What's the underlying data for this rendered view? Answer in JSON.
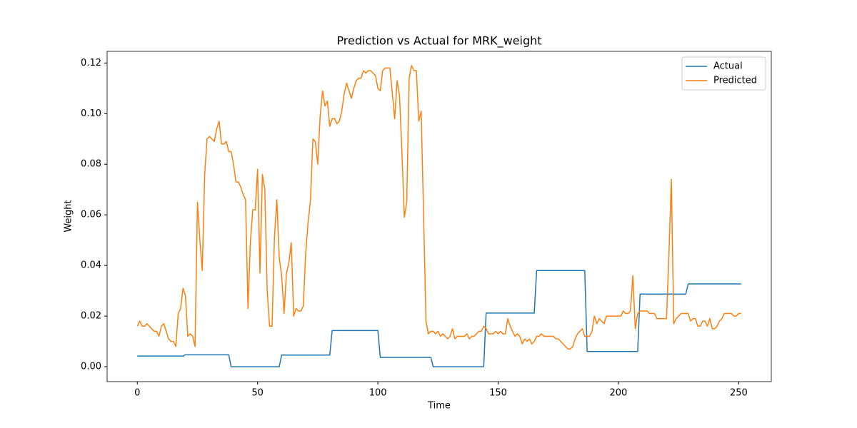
{
  "chart_data": {
    "type": "line",
    "title": "Prediction vs Actual for MRK_weight",
    "x_label": "Time",
    "y_label": "Weight",
    "x": [
      0,
      1,
      2,
      3,
      4,
      5,
      6,
      7,
      8,
      9,
      10,
      11,
      12,
      13,
      14,
      15,
      16,
      17,
      18,
      19,
      20,
      21,
      22,
      23,
      24,
      25,
      26,
      27,
      28,
      29,
      30,
      31,
      32,
      33,
      34,
      35,
      36,
      37,
      38,
      39,
      40,
      41,
      42,
      43,
      44,
      45,
      46,
      47,
      48,
      49,
      50,
      51,
      52,
      53,
      54,
      55,
      56,
      57,
      58,
      59,
      60,
      61,
      62,
      63,
      64,
      65,
      66,
      67,
      68,
      69,
      70,
      71,
      72,
      73,
      74,
      75,
      76,
      77,
      78,
      79,
      80,
      81,
      82,
      83,
      84,
      85,
      86,
      87,
      88,
      89,
      90,
      91,
      92,
      93,
      94,
      95,
      96,
      97,
      98,
      99,
      100,
      101,
      102,
      103,
      104,
      105,
      106,
      107,
      108,
      109,
      110,
      111,
      112,
      113,
      114,
      115,
      116,
      117,
      118,
      119,
      120,
      121,
      122,
      123,
      124,
      125,
      126,
      127,
      128,
      129,
      130,
      131,
      132,
      133,
      134,
      135,
      136,
      137,
      138,
      139,
      140,
      141,
      142,
      143,
      144,
      145,
      146,
      147,
      148,
      149,
      150,
      151,
      152,
      153,
      154,
      155,
      156,
      157,
      158,
      159,
      160,
      161,
      162,
      163,
      164,
      165,
      166,
      167,
      168,
      169,
      170,
      171,
      172,
      173,
      174,
      175,
      176,
      177,
      178,
      179,
      180,
      181,
      182,
      183,
      184,
      185,
      186,
      187,
      188,
      189,
      190,
      191,
      192,
      193,
      194,
      195,
      196,
      197,
      198,
      199,
      200,
      201,
      202,
      203,
      204,
      205,
      206,
      207,
      208,
      209,
      210,
      211,
      212,
      213,
      214,
      215,
      216,
      217,
      218,
      219,
      220,
      221,
      222,
      223,
      224,
      225,
      226,
      227,
      228,
      229,
      230,
      231,
      232,
      233,
      234,
      235,
      236,
      237,
      238,
      239,
      240,
      241,
      242,
      243,
      244,
      245,
      246,
      247,
      248,
      249,
      250,
      251
    ],
    "series": [
      {
        "name": "Actual",
        "color": "#1f77b4",
        "values": [
          0.0042,
          0.0042,
          0.0042,
          0.0042,
          0.0042,
          0.0042,
          0.0042,
          0.0042,
          0.0042,
          0.0042,
          0.0042,
          0.0042,
          0.0042,
          0.0042,
          0.0042,
          0.0042,
          0.0042,
          0.0042,
          0.0042,
          0.0042,
          0.0047,
          0.0047,
          0.0047,
          0.0047,
          0.0047,
          0.0047,
          0.0047,
          0.0047,
          0.0047,
          0.0047,
          0.0047,
          0.0047,
          0.0047,
          0.0047,
          0.0047,
          0.0047,
          0.0047,
          0.0047,
          0.0047,
          0,
          0,
          0,
          0,
          0,
          0,
          0,
          0,
          0,
          0,
          0,
          0,
          0,
          0,
          0,
          0,
          0,
          0,
          0,
          0,
          0,
          0.0046,
          0.0046,
          0.0046,
          0.0046,
          0.0046,
          0.0046,
          0.0046,
          0.0046,
          0.0046,
          0.0046,
          0.0046,
          0.0046,
          0.0046,
          0.0046,
          0.0046,
          0.0046,
          0.0046,
          0.0046,
          0.0046,
          0.0046,
          0.0046,
          0.0143,
          0.0143,
          0.0143,
          0.0143,
          0.0143,
          0.0143,
          0.0143,
          0.0143,
          0.0143,
          0.0143,
          0.0143,
          0.0143,
          0.0143,
          0.0143,
          0.0143,
          0.0143,
          0.0143,
          0.0143,
          0.0143,
          0.0143,
          0.0037,
          0.0037,
          0.0037,
          0.0037,
          0.0037,
          0.0037,
          0.0037,
          0.0037,
          0.0037,
          0.0037,
          0.0037,
          0.0037,
          0.0037,
          0.0037,
          0.0037,
          0.0037,
          0.0037,
          0.0037,
          0.0037,
          0.0037,
          0.0037,
          0.0037,
          0,
          0,
          0,
          0,
          0,
          0,
          0,
          0,
          0,
          0,
          0,
          0,
          0,
          0,
          0,
          0,
          0,
          0,
          0,
          0,
          0,
          0,
          0.0212,
          0.0212,
          0.0212,
          0.0212,
          0.0212,
          0.0212,
          0.0212,
          0.0212,
          0.0212,
          0.0212,
          0.0212,
          0.0212,
          0.0212,
          0.0212,
          0.0212,
          0.0212,
          0.0212,
          0.0212,
          0.0212,
          0.0212,
          0.0212,
          0.038,
          0.038,
          0.038,
          0.038,
          0.038,
          0.038,
          0.038,
          0.038,
          0.038,
          0.038,
          0.038,
          0.038,
          0.038,
          0.038,
          0.038,
          0.038,
          0.038,
          0.038,
          0.038,
          0.038,
          0.038,
          0.006,
          0.006,
          0.006,
          0.006,
          0.006,
          0.006,
          0.006,
          0.006,
          0.006,
          0.006,
          0.006,
          0.006,
          0.006,
          0.006,
          0.006,
          0.006,
          0.006,
          0.006,
          0.006,
          0.006,
          0.006,
          0.006,
          0.0287,
          0.0287,
          0.0287,
          0.0287,
          0.0287,
          0.0287,
          0.0287,
          0.0287,
          0.0287,
          0.0287,
          0.0287,
          0.0287,
          0.0287,
          0.0287,
          0.0287,
          0.0287,
          0.0287,
          0.0287,
          0.0287,
          0.0287,
          0.0327,
          0.0327,
          0.0327,
          0.0327,
          0.0327,
          0.0327,
          0.0327,
          0.0327,
          0.0327,
          0.0327,
          0.0327,
          0.0327,
          0.0327,
          0.0327,
          0.0327,
          0.0327,
          0.0327,
          0.0327,
          0.0327,
          0.0327,
          0.0327,
          0.0327,
          0.0327
        ]
      },
      {
        "name": "Predicted",
        "color": "#ff7f0e",
        "values": [
          0.016,
          0.018,
          0.016,
          0.016,
          0.017,
          0.016,
          0.015,
          0.014,
          0.014,
          0.012,
          0.016,
          0.017,
          0.014,
          0.011,
          0.01,
          0.01,
          0.008,
          0.021,
          0.023,
          0.031,
          0.028,
          0.012,
          0.013,
          0.012,
          0.008,
          0.065,
          0.05,
          0.038,
          0.076,
          0.09,
          0.091,
          0.09,
          0.089,
          0.094,
          0.097,
          0.088,
          0.088,
          0.089,
          0.085,
          0.085,
          0.08,
          0.073,
          0.073,
          0.071,
          0.068,
          0.066,
          0.023,
          0.049,
          0.062,
          0.062,
          0.078,
          0.037,
          0.076,
          0.07,
          0.03,
          0.016,
          0.016,
          0.051,
          0.066,
          0.043,
          0.036,
          0.021,
          0.037,
          0.041,
          0.049,
          0.02,
          0.023,
          0.022,
          0.022,
          0.024,
          0.045,
          0.057,
          0.066,
          0.09,
          0.089,
          0.08,
          0.099,
          0.109,
          0.103,
          0.105,
          0.095,
          0.098,
          0.098,
          0.096,
          0.097,
          0.101,
          0.108,
          0.112,
          0.109,
          0.106,
          0.11,
          0.113,
          0.114,
          0.114,
          0.117,
          0.116,
          0.117,
          0.117,
          0.116,
          0.115,
          0.11,
          0.109,
          0.117,
          0.118,
          0.118,
          0.118,
          0.108,
          0.098,
          0.113,
          0.107,
          0.085,
          0.059,
          0.065,
          0.114,
          0.119,
          0.117,
          0.117,
          0.097,
          0.101,
          0.06,
          0.018,
          0.013,
          0.014,
          0.014,
          0.013,
          0.014,
          0.012,
          0.013,
          0.012,
          0.011,
          0.012,
          0.015,
          0.011,
          0.012,
          0.012,
          0.012,
          0.012,
          0.013,
          0.011,
          0.012,
          0.012,
          0.013,
          0.014,
          0.014,
          0.016,
          0.015,
          0.013,
          0.013,
          0.013,
          0.014,
          0.013,
          0.014,
          0.013,
          0.013,
          0.019,
          0.016,
          0.014,
          0.012,
          0.013,
          0.012,
          0.009,
          0.011,
          0.01,
          0.011,
          0.009,
          0.01,
          0.012,
          0.012,
          0.013,
          0.012,
          0.012,
          0.012,
          0.012,
          0.012,
          0.011,
          0.011,
          0.01,
          0.009,
          0.008,
          0.007,
          0.007,
          0.008,
          0.011,
          0.013,
          0.014,
          0.015,
          0.012,
          0.012,
          0.012,
          0.014,
          0.02,
          0.017,
          0.019,
          0.018,
          0.017,
          0.02,
          0.02,
          0.02,
          0.02,
          0.02,
          0.02,
          0.02,
          0.022,
          0.021,
          0.021,
          0.022,
          0.036,
          0.015,
          0.021,
          0.022,
          0.022,
          0.022,
          0.022,
          0.021,
          0.021,
          0.021,
          0.019,
          0.019,
          0.019,
          0.019,
          0.019,
          0.045,
          0.074,
          0.017,
          0.019,
          0.02,
          0.021,
          0.021,
          0.021,
          0.021,
          0.018,
          0.019,
          0.019,
          0.016,
          0.016,
          0.018,
          0.018,
          0.016,
          0.019,
          0.015,
          0.015,
          0.016,
          0.018,
          0.019,
          0.021,
          0.021,
          0.021,
          0.021,
          0.02,
          0.02,
          0.021,
          0.021
        ]
      }
    ],
    "xlim": [
      -12.55,
      263.55
    ],
    "ylim": [
      -0.0059,
      0.1246
    ],
    "xticks": [
      0,
      50,
      100,
      150,
      200,
      250
    ],
    "yticks": [
      {
        "value": 0,
        "label": "0.00"
      },
      {
        "value": 0.02,
        "label": "0.02"
      },
      {
        "value": 0.04,
        "label": "0.04"
      },
      {
        "value": 0.06,
        "label": "0.06"
      },
      {
        "value": 0.08,
        "label": "0.08"
      },
      {
        "value": 0.1,
        "label": "0.10"
      },
      {
        "value": 0.12,
        "label": "0.12"
      }
    ],
    "grid": false,
    "legend": "upper right"
  }
}
